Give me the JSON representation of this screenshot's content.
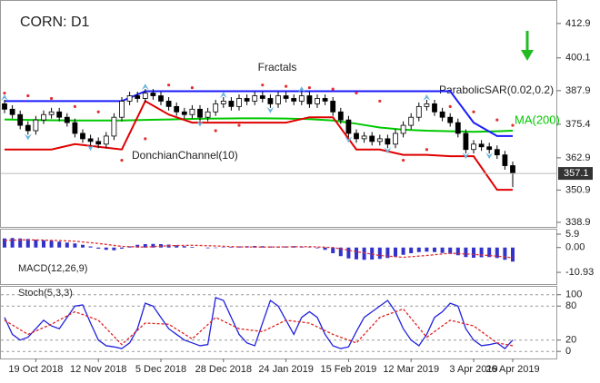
{
  "chart_data": [
    {
      "type": "candlestick",
      "title": "CORN: D1",
      "categories": [
        null,
        null,
        null,
        null,
        "19 Oct 2018",
        null,
        null,
        null,
        null,
        null,
        null,
        null,
        "12 Nov 2018",
        null,
        null,
        null,
        null,
        null,
        null,
        null,
        "5 Dec 2018",
        null,
        null,
        null,
        null,
        null,
        null,
        null,
        "28 Dec 2018",
        null,
        null,
        null,
        null,
        null,
        null,
        null,
        "24 Jan 2019",
        null,
        null,
        null,
        null,
        null,
        null,
        null,
        "15 Feb 2019",
        null,
        null,
        null,
        null,
        null,
        null,
        null,
        "12 Mar 2019",
        null,
        null,
        null,
        null,
        null,
        null,
        null,
        "3 Apr 2019",
        null,
        null,
        null,
        null,
        "26 Apr 2019"
      ],
      "open": [
        383,
        381,
        379,
        375,
        373,
        377,
        379,
        380,
        378,
        376,
        372,
        370,
        369,
        368,
        371,
        378,
        384,
        386,
        385,
        387,
        386,
        384,
        382,
        380,
        379,
        381,
        378,
        380,
        383,
        384,
        382,
        385,
        384,
        386,
        385,
        383,
        386,
        385,
        384,
        386,
        383,
        385,
        384,
        380,
        377,
        372,
        370,
        371,
        369,
        370,
        368,
        372,
        375,
        378,
        382,
        383,
        380,
        378,
        376,
        372,
        366,
        368,
        367,
        366,
        364,
        360
      ],
      "high": [
        384.5,
        382.5,
        380.5,
        376.5,
        378.5,
        380.5,
        381.5,
        381.5,
        379.5,
        377.5,
        373.5,
        371.5,
        370.5,
        372.5,
        379.5,
        385.5,
        387.5,
        387.5,
        388.5,
        388.5,
        387.5,
        385.5,
        383.5,
        381.5,
        382.5,
        382.5,
        381.5,
        384.5,
        385.5,
        385.5,
        386.5,
        386.5,
        387.5,
        387.5,
        386.5,
        387.5,
        387.5,
        386.5,
        387.5,
        387.5,
        386.5,
        386.5,
        385.5,
        381.5,
        378.5,
        373.5,
        372.5,
        372.5,
        371.5,
        371.5,
        373.5,
        376.5,
        379.5,
        383.5,
        384.5,
        384.5,
        381.5,
        379.5,
        377.5,
        373.5,
        369.5,
        369.5,
        368.5,
        367.5,
        365.5,
        361.5
      ],
      "low": [
        379.5,
        377.5,
        373.5,
        371.5,
        371.5,
        375.5,
        377.5,
        376.5,
        374.5,
        370.5,
        368.5,
        367.5,
        366.5,
        366.5,
        369.5,
        376.5,
        382.5,
        383.5,
        383.5,
        384.5,
        382.5,
        380.5,
        378.5,
        377.5,
        377.5,
        376.5,
        376.5,
        378.5,
        381.5,
        380.5,
        380.5,
        382.5,
        382.5,
        383.5,
        381.5,
        381.5,
        383.5,
        382.5,
        382.5,
        381.5,
        381.5,
        382.5,
        378.5,
        375.5,
        370.5,
        368.5,
        368.5,
        367.5,
        367.5,
        366.5,
        366.5,
        370.5,
        373.5,
        376.5,
        380.5,
        378.5,
        376.5,
        374.5,
        370.5,
        364.5,
        364.5,
        365.5,
        364.5,
        362.5,
        358.5,
        352
      ],
      "close": [
        381,
        379,
        375,
        373,
        377,
        379,
        380,
        378,
        376,
        372,
        370,
        369,
        368,
        371,
        378,
        384,
        386,
        385,
        387,
        386,
        384,
        382,
        380,
        379,
        381,
        378,
        380,
        383,
        384,
        382,
        385,
        384,
        386,
        385,
        383,
        386,
        385,
        384,
        386,
        383,
        385,
        384,
        380,
        377,
        372,
        370,
        371,
        369,
        370,
        368,
        372,
        375,
        378,
        382,
        383,
        380,
        378,
        376,
        372,
        366,
        368,
        367,
        366,
        364,
        360,
        357.1
      ],
      "ylim": [
        337.2,
        421.3
      ],
      "yticks": [
        338.9,
        350.9,
        362.9,
        375.4,
        387.9,
        400.1,
        412.9
      ],
      "indicator_x": [
        0,
        3,
        6,
        9,
        12,
        15,
        18,
        21,
        24,
        27,
        30,
        33,
        36,
        39,
        42,
        45,
        48,
        51,
        54,
        57,
        60,
        63,
        65
      ],
      "ma": {
        "name": "MA(200)",
        "color": "#00c800",
        "values": [
          377.2,
          377,
          376.9,
          376.8,
          376.8,
          376.8,
          377,
          377.2,
          377.4,
          377.5,
          377.6,
          377.6,
          377.5,
          377.3,
          376.8,
          375.6,
          374.2,
          373.4,
          373,
          372.8,
          372.6,
          372.8,
          373
        ]
      },
      "donchian": {
        "name": "DonchianChannel(10)",
        "upper_color": "#1a1aff",
        "lower_color": "#e00000",
        "upper": [
          384,
          384,
          384,
          384,
          384,
          384,
          387.7,
          387.7,
          387.7,
          387.7,
          387.7,
          387.7,
          387.7,
          387.7,
          387.7,
          387.7,
          387.7,
          387.7,
          387.7,
          387.7,
          376,
          371,
          371
        ],
        "lower": [
          366,
          366,
          366,
          368,
          367,
          366,
          384,
          379,
          376,
          376,
          376,
          376,
          376,
          378,
          378,
          366,
          366,
          364,
          364,
          363.5,
          363.5,
          351,
          351
        ]
      },
      "sar": {
        "name": "ParabolicSAR(0.02,0.2)",
        "color": "#e03030",
        "values": [
          387,
          386,
          385,
          382,
          380,
          362,
          370,
          390,
          389,
          373,
          375,
          390,
          389.5,
          389,
          388.5,
          387,
          384,
          362,
          366,
          382,
          380,
          377,
          375
        ]
      },
      "fractals": {
        "name": "Fractals",
        "color": "#6ab4dc",
        "x": [
          0,
          3,
          11,
          18,
          25,
          28,
          34,
          38,
          44,
          49,
          54,
          59,
          62
        ],
        "values": [
          386.5,
          369.5,
          365.5,
          390.5,
          374.5,
          387.5,
          379.5,
          389.5,
          368.5,
          364.5,
          386.5,
          362.5,
          362.5
        ]
      }
    },
    {
      "type": "macd",
      "title": "MACD(12,26,9)",
      "color": "#3333cc",
      "values": [
        4,
        4.2,
        4,
        3.8,
        3.5,
        3.2,
        3,
        2.6,
        2.2,
        1.8,
        1.2,
        0.5,
        -0.5,
        -1,
        -1.2,
        -0.5,
        0.5,
        1.2,
        1.5,
        1.6,
        1.5,
        1.3,
        1,
        0.6,
        0.3,
        0,
        -0.3,
        -0.2,
        0.2,
        0.3,
        0.5,
        0.6,
        0.7,
        0.6,
        0.5,
        0.4,
        0.5,
        0.6,
        0.4,
        0.2,
        -0.3,
        -1,
        -2.5,
        -3.8,
        -4.8,
        -5.2,
        -5.4,
        -5.3,
        -5,
        -4.6,
        -4,
        -3.2,
        -2.5,
        -2,
        -1.8,
        -2,
        -2.4,
        -2.8,
        -3.4,
        -4.2,
        -4.5,
        -4.3,
        -4.2,
        -4.6,
        -5.4,
        -6.2
      ],
      "signal": {
        "color": "#e03030",
        "values": [
          3.2,
          3.4,
          3.2,
          2.8,
          1.8,
          0.5,
          0.2,
          0.8,
          1,
          0.7,
          0.3,
          0.2,
          0.3,
          0.4,
          0,
          -1.8,
          -3.5,
          -4.3,
          -3.5,
          -2.5,
          -3,
          -3.8,
          -4.5
        ]
      },
      "ylim": [
        -16.1,
        7.9
      ],
      "yticks": [
        {
          "value": -10.93,
          "label": "-10.93"
        },
        {
          "value": 0,
          "label": "0.00"
        },
        5.9
      ]
    },
    {
      "type": "stoch",
      "title": "Stoch(5,3,3)",
      "k": {
        "color": "#2222dd",
        "values": [
          60,
          30,
          20,
          25,
          40,
          55,
          45,
          40,
          60,
          80,
          82,
          50,
          20,
          10,
          8,
          5,
          15,
          40,
          85,
          80,
          60,
          40,
          30,
          20,
          15,
          10,
          12,
          95,
          90,
          60,
          30,
          15,
          10,
          50,
          90,
          80,
          55,
          30,
          60,
          70,
          60,
          30,
          10,
          5,
          8,
          35,
          60,
          70,
          80,
          90,
          70,
          40,
          20,
          10,
          30,
          60,
          70,
          85,
          80,
          40,
          20,
          10,
          12,
          15,
          5,
          20
        ]
      },
      "d": {
        "color": "#e02020",
        "values": [
          55,
          30,
          48,
          70,
          55,
          12,
          50,
          48,
          22,
          60,
          40,
          35,
          55,
          50,
          30,
          15,
          60,
          75,
          25,
          55,
          45,
          15,
          10
        ]
      },
      "ylim": [
        -12.5,
        114
      ],
      "yticks": [
        0,
        20,
        80,
        100
      ]
    }
  ]
}
